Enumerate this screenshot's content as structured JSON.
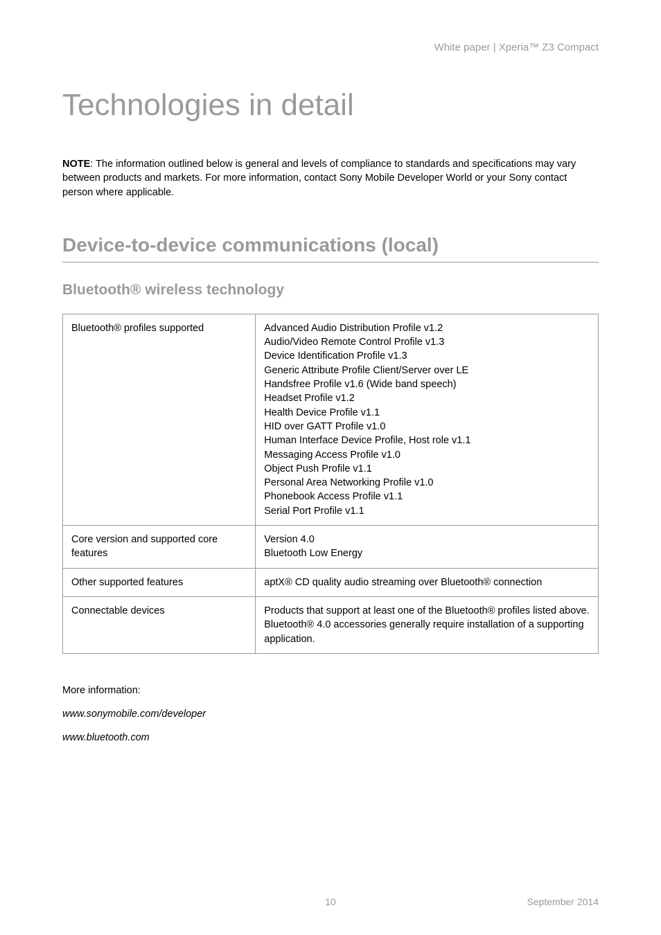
{
  "header": {
    "text": "White paper | Xperia™ Z3 Compact"
  },
  "title": "Technologies in detail",
  "note": {
    "label": "NOTE",
    "body": ": The information outlined below is general and levels of compliance to standards and specifications may vary between products and markets. For more information, contact Sony Mobile Developer World or your Sony contact person where applicable."
  },
  "section_heading": "Device-to-device communications (local)",
  "subsection_heading": "Bluetooth® wireless technology",
  "table": {
    "columns": [
      "label",
      "value"
    ],
    "rows": [
      {
        "label": "Bluetooth® profiles supported",
        "value": "Advanced Audio Distribution Profile v1.2\nAudio/Video Remote Control Profile v1.3\nDevice Identification Profile v1.3\nGeneric Attribute Profile Client/Server over LE\nHandsfree Profile v1.6 (Wide band speech)\nHeadset Profile v1.2\nHealth Device Profile v1.1\nHID over GATT Profile v1.0\nHuman Interface Device Profile, Host role v1.1\nMessaging Access Profile v1.0\nObject Push Profile v1.1\nPersonal Area Networking Profile v1.0\nPhonebook Access Profile v1.1\nSerial Port Profile v1.1"
      },
      {
        "label": "Core version and supported core features",
        "value": "Version 4.0\nBluetooth Low Energy"
      },
      {
        "label": "Other supported features",
        "value": "aptX® CD quality audio streaming over Bluetooth® connection"
      },
      {
        "label": "Connectable devices",
        "value": "Products that support at least one of the Bluetooth® profiles listed above.\nBluetooth® 4.0 accessories generally require installation of a supporting application."
      }
    ]
  },
  "more_info_label": "More information:",
  "links": [
    "www.sonymobile.com/developer",
    "www.bluetooth.com"
  ],
  "footer": {
    "page_number": "10",
    "date": "September 2014"
  },
  "styling": {
    "body_bg": "#ffffff",
    "muted_text_color": "#9a9a9a",
    "body_text_color": "#000000",
    "border_color": "#9a9a9a",
    "title_fontsize": 44,
    "section_heading_fontsize": 28,
    "subsection_heading_fontsize": 21,
    "body_fontsize": 14.5,
    "header_fontsize": 15,
    "footer_fontsize": 14
  }
}
